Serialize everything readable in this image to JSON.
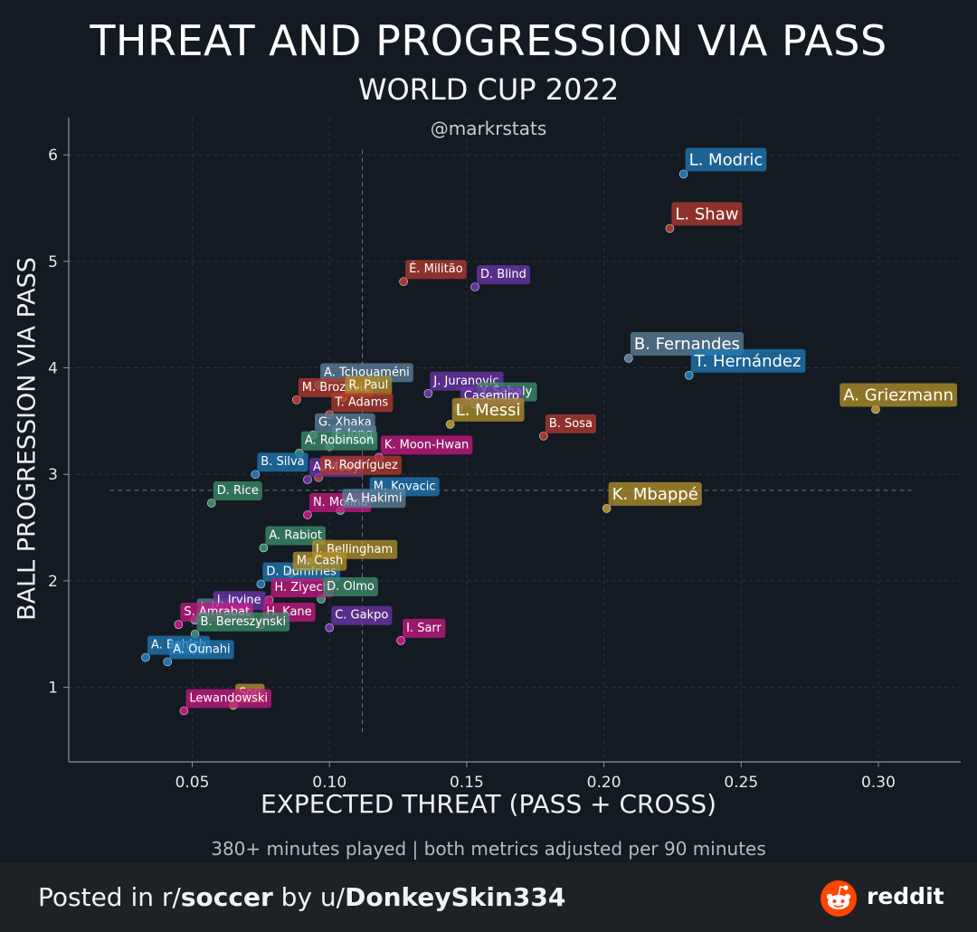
{
  "chart_data": {
    "type": "scatter",
    "title": "THREAT AND PROGRESSION VIA PASS",
    "subtitle": "WORLD CUP 2022",
    "credit": "@markrstats",
    "xlabel": "EXPECTED THREAT (PASS + CROSS)",
    "ylabel": "BALL PROGRESSION VIA PASS",
    "note": "380+ minutes played | both metrics adjusted per 90 minutes",
    "xlim": [
      0.005,
      0.33
    ],
    "ylim": [
      0.3,
      6.35
    ],
    "xticks": [
      0.05,
      0.1,
      0.15,
      0.2,
      0.25,
      0.3
    ],
    "xtick_labels": [
      "0.05",
      "0.10",
      "0.15",
      "0.20",
      "0.25",
      "0.30"
    ],
    "yticks": [
      1,
      2,
      3,
      4,
      5,
      6
    ],
    "ytick_labels": [
      "1",
      "2",
      "3",
      "4",
      "5",
      "6"
    ],
    "grid": true,
    "reference_lines": {
      "x_mean": 0.112,
      "y_mean": 2.85
    },
    "colors": {
      "blue": "#1f77b4",
      "red": "#c0392b",
      "purple": "#7b3fb0",
      "green": "#3a9a6e",
      "slate": "#6b8fab",
      "gold": "#c9a227",
      "magenta": "#c2187f",
      "teal": "#3c8c6a"
    },
    "points": [
      {
        "name": "L. Modric",
        "x": 0.229,
        "y": 5.82,
        "color": "#1f77b4",
        "big": true
      },
      {
        "name": "L. Shaw",
        "x": 0.224,
        "y": 5.31,
        "color": "#b03a2e",
        "big": true
      },
      {
        "name": "É. Militão",
        "x": 0.127,
        "y": 4.81,
        "color": "#b03a2e"
      },
      {
        "name": "D. Blind",
        "x": 0.153,
        "y": 4.76,
        "color": "#6a35a8"
      },
      {
        "name": "B. Fernandes",
        "x": 0.209,
        "y": 4.09,
        "color": "#5b7f98",
        "big": true
      },
      {
        "name": "T. Hernández",
        "x": 0.231,
        "y": 3.93,
        "color": "#1f77b4",
        "big": true
      },
      {
        "name": "A. Griezmann",
        "x": 0.299,
        "y": 3.61,
        "color": "#b0902a",
        "big": true
      },
      {
        "name": "A. Tchouaméni",
        "x": 0.096,
        "y": 3.84,
        "color": "#5b7f98"
      },
      {
        "name": "M. Brozovic",
        "x": 0.088,
        "y": 3.7,
        "color": "#b03a2e"
      },
      {
        "name": "J. Juranovic",
        "x": 0.136,
        "y": 3.76,
        "color": "#6a35a8"
      },
      {
        "name": "Y. Sabaly",
        "x": 0.153,
        "y": 3.66,
        "color": "#3c8c6a"
      },
      {
        "name": "R. Paul",
        "x": 0.105,
        "y": 3.72,
        "color": "#b0902a"
      },
      {
        "name": "Casemiro",
        "x": 0.147,
        "y": 3.62,
        "color": "#6a35a8"
      },
      {
        "name": "T. Adams",
        "x": 0.1,
        "y": 3.56,
        "color": "#b03a2e"
      },
      {
        "name": "L. Messi",
        "x": 0.144,
        "y": 3.47,
        "color": "#b0902a",
        "big": true
      },
      {
        "name": "B. Sosa",
        "x": 0.178,
        "y": 3.36,
        "color": "#b03a2e"
      },
      {
        "name": "G. Xhaka",
        "x": 0.094,
        "y": 3.37,
        "color": "#5b7f98"
      },
      {
        "name": "F. Jong",
        "x": 0.1,
        "y": 3.26,
        "color": "#5b7f98"
      },
      {
        "name": "A. Robinson",
        "x": 0.089,
        "y": 3.2,
        "color": "#3c8c6a"
      },
      {
        "name": "K. Moon-Hwan",
        "x": 0.118,
        "y": 3.16,
        "color": "#c2187f"
      },
      {
        "name": "B. Silva",
        "x": 0.073,
        "y": 3.0,
        "color": "#1f77b4"
      },
      {
        "name": "A. Mooy",
        "x": 0.092,
        "y": 2.95,
        "color": "#6a35a8"
      },
      {
        "name": "R. Rodríguez",
        "x": 0.096,
        "y": 2.97,
        "color": "#b03a2e"
      },
      {
        "name": "D. Rice",
        "x": 0.057,
        "y": 2.73,
        "color": "#3c8c6a"
      },
      {
        "name": "N. Molina",
        "x": 0.092,
        "y": 2.62,
        "color": "#c2187f"
      },
      {
        "name": "M. Kovacic",
        "x": 0.114,
        "y": 2.77,
        "color": "#1f77b4"
      },
      {
        "name": "A. Hakimi",
        "x": 0.104,
        "y": 2.66,
        "color": "#5b7f98"
      },
      {
        "name": "K. Mbappé",
        "x": 0.201,
        "y": 2.68,
        "color": "#b0902a",
        "big": true
      },
      {
        "name": "A. Rabiot",
        "x": 0.076,
        "y": 2.31,
        "color": "#3c8c6a"
      },
      {
        "name": "J. Bellingham",
        "x": 0.093,
        "y": 2.18,
        "color": "#b0902a"
      },
      {
        "name": "D. Dumfries",
        "x": 0.075,
        "y": 1.97,
        "color": "#1f77b4"
      },
      {
        "name": "M. Cash",
        "x": 0.086,
        "y": 2.07,
        "color": "#b0902a"
      },
      {
        "name": "H. Ziyech",
        "x": 0.078,
        "y": 1.82,
        "color": "#c2187f"
      },
      {
        "name": "D. Olmo",
        "x": 0.097,
        "y": 1.83,
        "color": "#3c8c6a"
      },
      {
        "name": "I. Perisic",
        "x": 0.051,
        "y": 1.63,
        "color": "#5b7f98"
      },
      {
        "name": "J. Irvine",
        "x": 0.057,
        "y": 1.7,
        "color": "#6a35a8"
      },
      {
        "name": "H. Kane",
        "x": 0.075,
        "y": 1.59,
        "color": "#c2187f"
      },
      {
        "name": "C. Gakpo",
        "x": 0.1,
        "y": 1.56,
        "color": "#6a35a8"
      },
      {
        "name": "I. Sarr",
        "x": 0.126,
        "y": 1.44,
        "color": "#c2187f"
      },
      {
        "name": "S. Amrabat",
        "x": 0.045,
        "y": 1.59,
        "color": "#c2187f"
      },
      {
        "name": "B. Bereszynski",
        "x": 0.051,
        "y": 1.5,
        "color": "#3c8c6a"
      },
      {
        "name": "A. Behich",
        "x": 0.033,
        "y": 1.28,
        "color": "#1f77b4"
      },
      {
        "name": "A. Ounahi",
        "x": 0.041,
        "y": 1.24,
        "color": "#1f77b4"
      },
      {
        "name": "Son",
        "x": 0.065,
        "y": 0.83,
        "color": "#b0902a"
      },
      {
        "name": "Lewandowski",
        "x": 0.047,
        "y": 0.78,
        "color": "#c2187f"
      }
    ]
  },
  "footer": {
    "prefix": "Posted in r/",
    "subreddit": "soccer",
    "middle": " by u/",
    "user": "DonkeySkin334",
    "brand": "reddit"
  }
}
